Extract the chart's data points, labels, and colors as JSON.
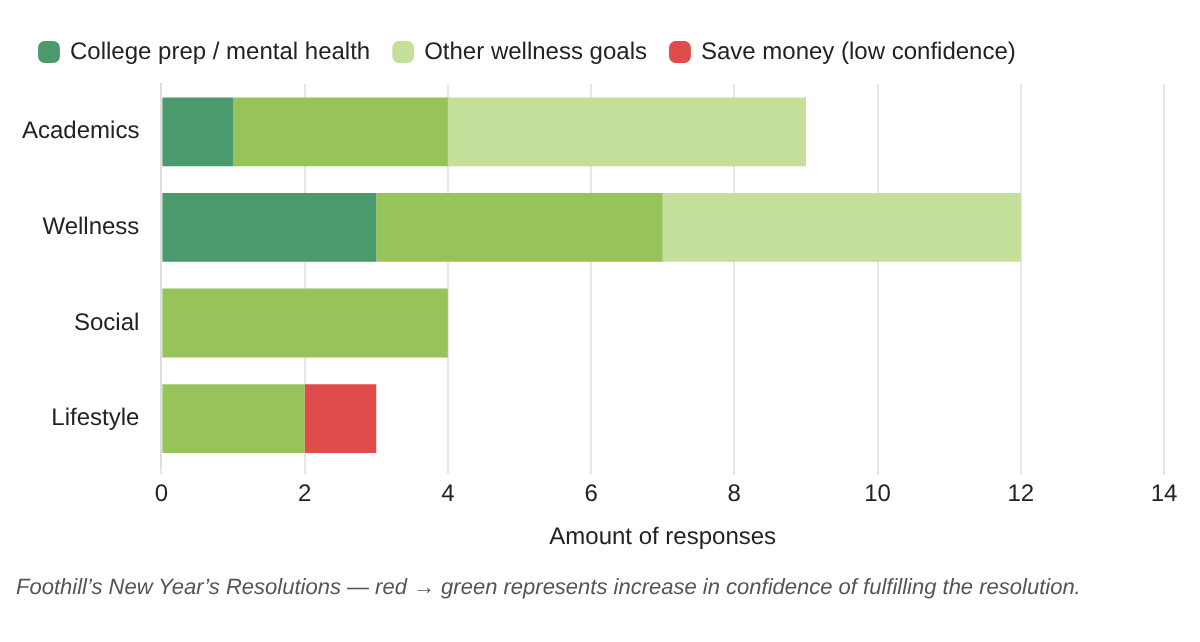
{
  "chart_data": {
    "type": "bar",
    "orientation": "horizontal",
    "stacked": true,
    "categories": [
      "Academics",
      "Wellness",
      "Social",
      "Lifestyle"
    ],
    "series": [
      {
        "name": "College prep / mental health",
        "color": "#4a9a6e",
        "values": [
          1,
          3,
          null,
          null
        ]
      },
      {
        "color": "#97c45a",
        "values": [
          3,
          4,
          4,
          2
        ]
      },
      {
        "name": "Other wellness goals",
        "color": "#c3df9a",
        "values": [
          5,
          5,
          null,
          null
        ]
      },
      {
        "name": "Save money (low confidence)",
        "color": "#e04b4b",
        "values": [
          null,
          null,
          null,
          1
        ]
      }
    ],
    "xlim": [
      0,
      14
    ],
    "xticks": [
      0,
      2,
      4,
      6,
      8,
      10,
      12,
      14
    ],
    "xlabel": "Amount of responses",
    "grid": "x",
    "legend": "top left",
    "annotations": [
      "Foothill’s New Year’s Resolutions — red → green represents increase in confidence of fulfilling the resolution."
    ]
  }
}
